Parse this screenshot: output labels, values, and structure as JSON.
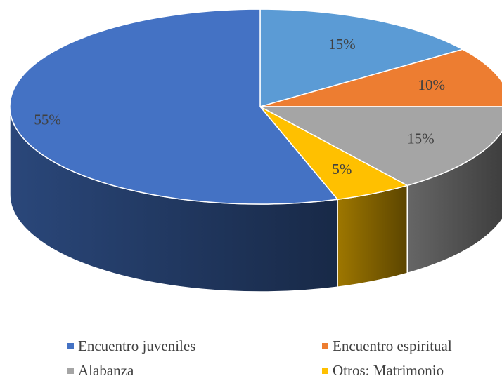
{
  "chart_data": {
    "type": "pie",
    "style": "3d",
    "title": "",
    "legend_position": "bottom",
    "series": [
      {
        "name": "Encuentro juveniles",
        "value": 55,
        "label": "55%",
        "color": "#4472C4"
      },
      {
        "name": "Encuentro espiritual",
        "value": 10,
        "label": "10%",
        "color": "#ED7D31"
      },
      {
        "name": "Alabanza",
        "value": 15,
        "label": "15%",
        "color": "#A5A5A5"
      },
      {
        "name": "Otros: Matrimonio",
        "value": 5,
        "label": "5%",
        "color": "#FFC000"
      },
      {
        "name": "",
        "value": 15,
        "label": "15%",
        "color": "#5B9BD5"
      }
    ]
  }
}
